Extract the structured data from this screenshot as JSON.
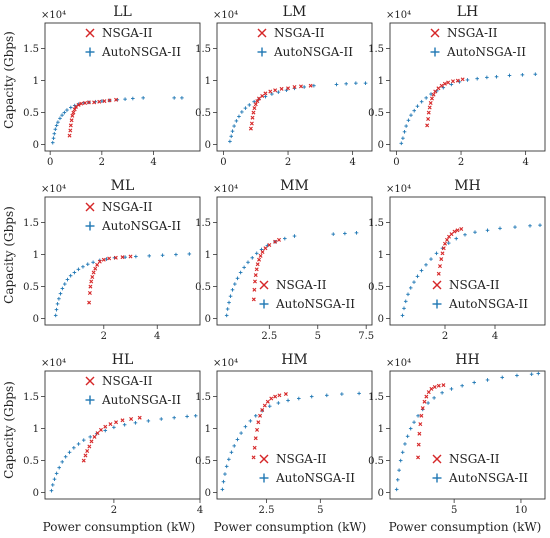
{
  "figure": {
    "y_label": "Capacity (Gbps)",
    "x_label": "Power consumption (kW)",
    "y_multiplier": "×10⁴"
  },
  "legend_entries": [
    "NSGA-II",
    "AutoNSGA-II"
  ],
  "colors": {
    "nsga": "#d62728",
    "auto": "#1f77b4",
    "axes": "#333333"
  },
  "chart_data": [
    {
      "type": "scatter",
      "title": "LL",
      "xlim": [
        -0.2,
        5.8
      ],
      "ylim": [
        -0.1,
        1.9
      ],
      "xticks": [
        0,
        2,
        4
      ],
      "yticks": [
        0.0,
        0.5,
        1.0,
        1.5
      ],
      "legend": "top-right",
      "series": [
        {
          "name": "NSGA-II",
          "marker": "x",
          "x": [
            0.75,
            0.78,
            0.8,
            0.83,
            0.86,
            0.9,
            0.95,
            1.0,
            1.1,
            1.2,
            1.35,
            1.5,
            1.7,
            1.9,
            2.1,
            2.3,
            2.55
          ],
          "y": [
            0.14,
            0.22,
            0.3,
            0.38,
            0.45,
            0.5,
            0.55,
            0.59,
            0.62,
            0.64,
            0.65,
            0.66,
            0.66,
            0.67,
            0.68,
            0.69,
            0.7
          ]
        },
        {
          "name": "AutoNSGA-II",
          "marker": "+",
          "x": [
            0.1,
            0.13,
            0.16,
            0.2,
            0.25,
            0.3,
            0.38,
            0.46,
            0.55,
            0.65,
            0.8,
            0.95,
            1.1,
            1.3,
            1.5,
            1.75,
            2.0,
            2.3,
            2.6,
            2.9,
            3.2,
            3.6,
            4.8,
            5.1
          ],
          "y": [
            0.03,
            0.1,
            0.17,
            0.24,
            0.3,
            0.35,
            0.41,
            0.46,
            0.5,
            0.54,
            0.58,
            0.61,
            0.63,
            0.65,
            0.66,
            0.67,
            0.68,
            0.69,
            0.7,
            0.71,
            0.72,
            0.73,
            0.73,
            0.73
          ]
        }
      ]
    },
    {
      "type": "scatter",
      "title": "LM",
      "xlim": [
        -0.2,
        4.6
      ],
      "ylim": [
        -0.1,
        1.9
      ],
      "xticks": [
        0,
        2,
        4
      ],
      "yticks": [
        0.0,
        0.5,
        1.0,
        1.5
      ],
      "legend": "top-right",
      "series": [
        {
          "name": "NSGA-II",
          "marker": "x",
          "x": [
            0.85,
            0.88,
            0.9,
            0.93,
            0.96,
            1.0,
            1.05,
            1.1,
            1.2,
            1.3,
            1.45,
            1.6,
            1.8,
            2.0,
            2.2,
            2.4,
            2.7
          ],
          "y": [
            0.25,
            0.33,
            0.42,
            0.5,
            0.57,
            0.63,
            0.68,
            0.72,
            0.76,
            0.8,
            0.83,
            0.85,
            0.87,
            0.88,
            0.9,
            0.91,
            0.92
          ]
        },
        {
          "name": "AutoNSGA-II",
          "marker": "+",
          "x": [
            0.2,
            0.24,
            0.28,
            0.33,
            0.4,
            0.48,
            0.57,
            0.68,
            0.8,
            0.95,
            1.1,
            1.3,
            1.5,
            1.7,
            1.95,
            2.2,
            2.5,
            2.8,
            3.5,
            3.8,
            4.1,
            4.4
          ],
          "y": [
            0.05,
            0.13,
            0.21,
            0.29,
            0.37,
            0.44,
            0.51,
            0.57,
            0.62,
            0.67,
            0.71,
            0.75,
            0.79,
            0.82,
            0.85,
            0.88,
            0.9,
            0.92,
            0.94,
            0.95,
            0.96,
            0.96
          ]
        }
      ]
    },
    {
      "type": "scatter",
      "title": "LH",
      "xlim": [
        -0.2,
        4.6
      ],
      "ylim": [
        -0.1,
        1.9
      ],
      "xticks": [
        0,
        2,
        4
      ],
      "yticks": [
        0.0,
        0.5,
        1.0,
        1.5
      ],
      "legend": "top-right",
      "series": [
        {
          "name": "NSGA-II",
          "marker": "x",
          "x": [
            0.95,
            0.98,
            1.0,
            1.03,
            1.06,
            1.1,
            1.15,
            1.2,
            1.3,
            1.4,
            1.5,
            1.6,
            1.75,
            1.9,
            2.05
          ],
          "y": [
            0.3,
            0.4,
            0.5,
            0.58,
            0.65,
            0.72,
            0.78,
            0.83,
            0.88,
            0.92,
            0.95,
            0.97,
            0.99,
            1.0,
            1.02
          ]
        },
        {
          "name": "AutoNSGA-II",
          "marker": "+",
          "x": [
            0.15,
            0.2,
            0.25,
            0.3,
            0.37,
            0.45,
            0.55,
            0.65,
            0.78,
            0.92,
            1.07,
            1.25,
            1.45,
            1.7,
            1.95,
            2.2,
            2.5,
            2.8,
            3.1,
            3.5,
            3.9,
            4.3
          ],
          "y": [
            0.02,
            0.1,
            0.2,
            0.29,
            0.38,
            0.46,
            0.53,
            0.6,
            0.67,
            0.73,
            0.79,
            0.84,
            0.89,
            0.94,
            0.98,
            1.01,
            1.03,
            1.05,
            1.06,
            1.08,
            1.09,
            1.1
          ]
        }
      ]
    },
    {
      "type": "scatter",
      "title": "ML",
      "xlim": [
        -0.2,
        5.6
      ],
      "ylim": [
        -0.1,
        1.9
      ],
      "xticks": [
        2,
        4
      ],
      "yticks": [
        0.0,
        0.5,
        1.0,
        1.5
      ],
      "legend": "top-right",
      "series": [
        {
          "name": "NSGA-II",
          "marker": "x",
          "x": [
            1.45,
            1.48,
            1.5,
            1.53,
            1.57,
            1.62,
            1.68,
            1.75,
            1.85,
            2.0,
            2.2,
            2.45,
            2.7,
            3.0
          ],
          "y": [
            0.25,
            0.4,
            0.5,
            0.58,
            0.65,
            0.72,
            0.78,
            0.84,
            0.89,
            0.92,
            0.94,
            0.95,
            0.96,
            0.97
          ]
        },
        {
          "name": "AutoNSGA-II",
          "marker": "+",
          "x": [
            0.2,
            0.23,
            0.27,
            0.32,
            0.38,
            0.45,
            0.54,
            0.64,
            0.76,
            0.9,
            1.05,
            1.22,
            1.4,
            1.6,
            1.85,
            2.1,
            2.4,
            2.8,
            3.2,
            3.7,
            4.2,
            4.7,
            5.2
          ],
          "y": [
            0.05,
            0.14,
            0.23,
            0.31,
            0.39,
            0.47,
            0.54,
            0.61,
            0.67,
            0.72,
            0.77,
            0.81,
            0.85,
            0.88,
            0.91,
            0.93,
            0.95,
            0.96,
            0.97,
            0.98,
            0.99,
            1.0,
            1.01
          ]
        }
      ]
    },
    {
      "type": "scatter",
      "title": "MM",
      "xlim": [
        -0.2,
        7.8
      ],
      "ylim": [
        -0.1,
        1.9
      ],
      "xticks": [
        2.5,
        5.0,
        7.5
      ],
      "yticks": [
        0.0,
        0.5,
        1.0,
        1.5
      ],
      "legend": "bottom-right",
      "series": [
        {
          "name": "NSGA-II",
          "marker": "x",
          "x": [
            1.7,
            1.73,
            1.76,
            1.8,
            1.85,
            1.9,
            1.97,
            2.05,
            2.15,
            2.3,
            2.5,
            2.8,
            3.0
          ],
          "y": [
            0.3,
            0.45,
            0.58,
            0.68,
            0.77,
            0.85,
            0.92,
            0.98,
            1.04,
            1.1,
            1.15,
            1.2,
            1.23
          ]
        },
        {
          "name": "AutoNSGA-II",
          "marker": "+",
          "x": [
            0.3,
            0.35,
            0.42,
            0.5,
            0.6,
            0.72,
            0.86,
            1.02,
            1.2,
            1.4,
            1.62,
            1.85,
            2.1,
            2.4,
            2.8,
            3.3,
            3.8,
            5.8,
            6.4,
            7.0
          ],
          "y": [
            0.05,
            0.15,
            0.25,
            0.35,
            0.45,
            0.54,
            0.63,
            0.72,
            0.8,
            0.88,
            0.95,
            1.02,
            1.08,
            1.14,
            1.2,
            1.25,
            1.29,
            1.32,
            1.33,
            1.34
          ]
        }
      ]
    },
    {
      "type": "scatter",
      "title": "MH",
      "xlim": [
        -0.2,
        6.0
      ],
      "ylim": [
        -0.1,
        1.9
      ],
      "xticks": [
        2,
        4
      ],
      "yticks": [
        0.0,
        0.5,
        1.0,
        1.5
      ],
      "legend": "bottom-right",
      "series": [
        {
          "name": "NSGA-II",
          "marker": "x",
          "x": [
            1.75,
            1.8,
            1.85,
            1.9,
            1.95,
            2.0,
            2.08,
            2.16,
            2.26,
            2.38,
            2.5,
            2.65
          ],
          "y": [
            0.7,
            0.82,
            0.93,
            1.02,
            1.1,
            1.17,
            1.23,
            1.28,
            1.32,
            1.36,
            1.38,
            1.4
          ]
        },
        {
          "name": "AutoNSGA-II",
          "marker": "+",
          "x": [
            0.3,
            0.36,
            0.43,
            0.52,
            0.63,
            0.76,
            0.9,
            1.06,
            1.24,
            1.44,
            1.66,
            1.9,
            2.15,
            2.45,
            2.8,
            3.2,
            3.7,
            4.2,
            4.8,
            5.4,
            5.8
          ],
          "y": [
            0.05,
            0.16,
            0.27,
            0.38,
            0.48,
            0.57,
            0.66,
            0.75,
            0.84,
            0.93,
            1.02,
            1.1,
            1.18,
            1.25,
            1.31,
            1.35,
            1.38,
            1.41,
            1.43,
            1.45,
            1.46
          ]
        }
      ]
    },
    {
      "type": "scatter",
      "title": "HL",
      "xlim": [
        0.4,
        4.0
      ],
      "ylim": [
        -0.1,
        1.9
      ],
      "xticks": [
        2,
        4
      ],
      "yticks": [
        0.0,
        0.5,
        1.0,
        1.5
      ],
      "legend": "top-left",
      "series": [
        {
          "name": "NSGA-II",
          "marker": "x",
          "x": [
            1.3,
            1.34,
            1.38,
            1.43,
            1.48,
            1.55,
            1.62,
            1.7,
            1.8,
            1.92,
            2.05,
            2.2,
            2.4,
            2.6
          ],
          "y": [
            0.5,
            0.58,
            0.65,
            0.72,
            0.8,
            0.87,
            0.93,
            0.98,
            1.03,
            1.07,
            1.1,
            1.13,
            1.15,
            1.17
          ]
        },
        {
          "name": "AutoNSGA-II",
          "marker": "+",
          "x": [
            0.55,
            0.58,
            0.62,
            0.67,
            0.73,
            0.8,
            0.88,
            0.97,
            1.07,
            1.18,
            1.3,
            1.45,
            1.6,
            1.8,
            2.0,
            2.25,
            2.5,
            2.8,
            3.1,
            3.4,
            3.7,
            3.9
          ],
          "y": [
            0.03,
            0.12,
            0.21,
            0.3,
            0.39,
            0.48,
            0.56,
            0.63,
            0.7,
            0.76,
            0.82,
            0.87,
            0.92,
            0.97,
            1.02,
            1.06,
            1.09,
            1.12,
            1.15,
            1.17,
            1.19,
            1.2
          ]
        }
      ]
    },
    {
      "type": "scatter",
      "title": "HM",
      "xlim": [
        0.2,
        7.4
      ],
      "ylim": [
        -0.1,
        1.9
      ],
      "xticks": [
        2.5,
        5.0
      ],
      "yticks": [
        0.0,
        0.5,
        1.0,
        1.5
      ],
      "legend": "bottom-right",
      "series": [
        {
          "name": "NSGA-II",
          "marker": "x",
          "x": [
            1.9,
            1.95,
            2.0,
            2.06,
            2.12,
            2.2,
            2.3,
            2.42,
            2.56,
            2.72,
            2.9,
            3.1,
            3.4
          ],
          "y": [
            0.55,
            0.7,
            0.85,
            0.98,
            1.1,
            1.2,
            1.29,
            1.36,
            1.42,
            1.47,
            1.5,
            1.52,
            1.54
          ]
        },
        {
          "name": "AutoNSGA-II",
          "marker": "+",
          "x": [
            0.45,
            0.5,
            0.57,
            0.65,
            0.75,
            0.87,
            1.0,
            1.15,
            1.32,
            1.52,
            1.75,
            2.0,
            2.3,
            2.65,
            3.05,
            3.5,
            4.0,
            4.6,
            5.3,
            6.0,
            6.8
          ],
          "y": [
            0.05,
            0.17,
            0.29,
            0.41,
            0.52,
            0.63,
            0.73,
            0.83,
            0.93,
            1.03,
            1.12,
            1.2,
            1.28,
            1.35,
            1.4,
            1.44,
            1.47,
            1.5,
            1.52,
            1.54,
            1.55
          ]
        }
      ]
    },
    {
      "type": "scatter",
      "title": "HH",
      "xlim": [
        0.2,
        11.8
      ],
      "ylim": [
        -0.1,
        1.9
      ],
      "xticks": [
        5,
        10
      ],
      "yticks": [
        0.0,
        0.5,
        1.0,
        1.5
      ],
      "legend": "bottom-right",
      "series": [
        {
          "name": "NSGA-II",
          "marker": "x",
          "x": [
            2.3,
            2.35,
            2.4,
            2.47,
            2.55,
            2.65,
            2.78,
            2.92,
            3.1,
            3.3,
            3.55,
            3.85,
            4.2
          ],
          "y": [
            0.55,
            0.75,
            0.92,
            1.07,
            1.2,
            1.32,
            1.42,
            1.5,
            1.57,
            1.62,
            1.65,
            1.67,
            1.68
          ]
        },
        {
          "name": "AutoNSGA-II",
          "marker": "+",
          "x": [
            0.7,
            0.78,
            0.88,
            1.0,
            1.15,
            1.32,
            1.52,
            1.75,
            2.0,
            2.3,
            2.65,
            3.05,
            3.5,
            4.1,
            4.8,
            5.6,
            6.5,
            7.5,
            8.6,
            9.7,
            10.8,
            11.3
          ],
          "y": [
            0.05,
            0.2,
            0.35,
            0.5,
            0.63,
            0.76,
            0.88,
            1.0,
            1.1,
            1.2,
            1.3,
            1.4,
            1.48,
            1.56,
            1.62,
            1.67,
            1.72,
            1.76,
            1.8,
            1.83,
            1.85,
            1.86
          ]
        }
      ]
    }
  ]
}
